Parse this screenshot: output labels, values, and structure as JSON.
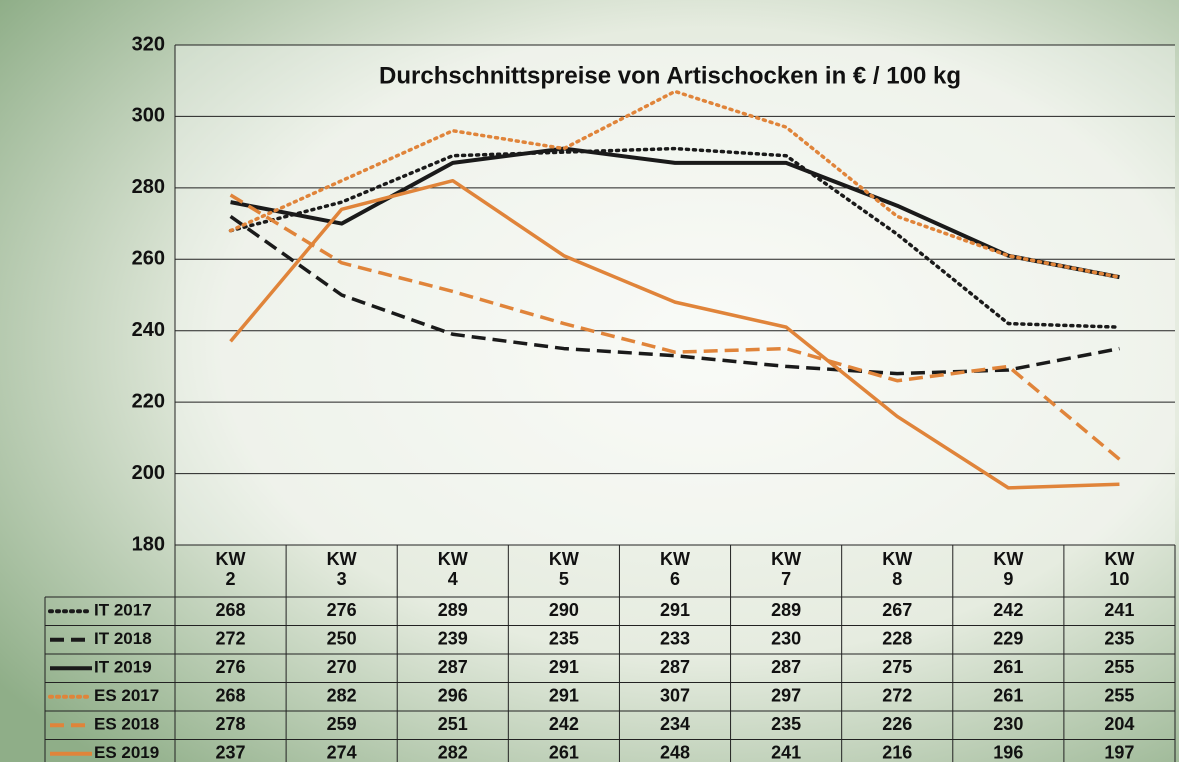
{
  "chart_data": {
    "type": "line",
    "title": "Durchschnittspreise von Artischocken in € / 100 kg",
    "categories": [
      "KW 2",
      "KW 3",
      "KW 4",
      "KW 5",
      "KW 6",
      "KW 7",
      "KW 8",
      "KW 9",
      "KW 10"
    ],
    "ylim": [
      180,
      320
    ],
    "yticks": [
      180,
      200,
      220,
      240,
      260,
      280,
      300,
      320
    ],
    "grid": true,
    "series": [
      {
        "name": "IT 2017",
        "color": "#1a1a1a",
        "dash": "dotted",
        "values": [
          268,
          276,
          289,
          290,
          291,
          289,
          267,
          242,
          241
        ]
      },
      {
        "name": "IT 2018",
        "color": "#1a1a1a",
        "dash": "dashed",
        "values": [
          272,
          250,
          239,
          235,
          233,
          230,
          228,
          229,
          235
        ]
      },
      {
        "name": "IT 2019",
        "color": "#1a1a1a",
        "dash": "solid",
        "values": [
          276,
          270,
          287,
          291,
          287,
          287,
          275,
          261,
          255
        ]
      },
      {
        "name": "ES 2017",
        "color": "#e0843a",
        "dash": "dotted",
        "values": [
          268,
          282,
          296,
          291,
          307,
          297,
          272,
          261,
          255
        ]
      },
      {
        "name": "ES 2018",
        "color": "#e0843a",
        "dash": "dashed",
        "values": [
          278,
          259,
          251,
          242,
          234,
          235,
          226,
          230,
          204
        ]
      },
      {
        "name": "ES 2019",
        "color": "#e0843a",
        "dash": "solid",
        "values": [
          237,
          274,
          282,
          261,
          248,
          241,
          216,
          196,
          197
        ]
      }
    ]
  }
}
